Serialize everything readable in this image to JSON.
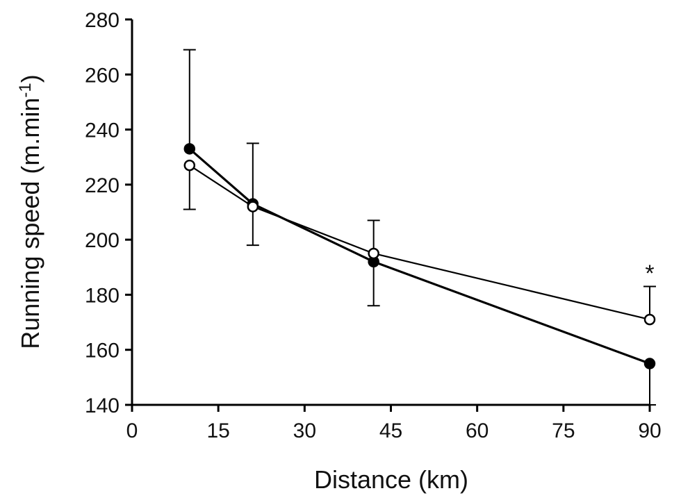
{
  "chart_data": {
    "type": "line",
    "xlabel": "Distance (km)",
    "ylabel": "Running speed (m.min",
    "ylabel_superscript": "-1",
    "ylabel_suffix": ")",
    "xlim": [
      0,
      90
    ],
    "ylim": [
      140,
      280
    ],
    "x_ticks": [
      0,
      15,
      30,
      45,
      60,
      75,
      90
    ],
    "y_ticks": [
      140,
      160,
      180,
      200,
      220,
      240,
      260,
      280
    ],
    "grid": false,
    "legend": "none",
    "annotations": [
      {
        "text": "*",
        "x": 90,
        "y": 189
      }
    ],
    "series": [
      {
        "marker": "filled-circle",
        "color": "#000000",
        "x": [
          10,
          21,
          42,
          90
        ],
        "y": [
          233,
          213,
          192,
          155
        ],
        "error_upper": [
          269,
          235,
          null,
          null
        ],
        "error_lower": [
          null,
          null,
          176,
          140
        ]
      },
      {
        "marker": "open-circle",
        "color": "#000000",
        "x": [
          10,
          21,
          42,
          90
        ],
        "y": [
          227,
          212,
          195,
          171
        ],
        "error_upper": [
          null,
          null,
          207,
          183
        ],
        "error_lower": [
          211,
          198,
          null,
          null
        ]
      }
    ]
  }
}
